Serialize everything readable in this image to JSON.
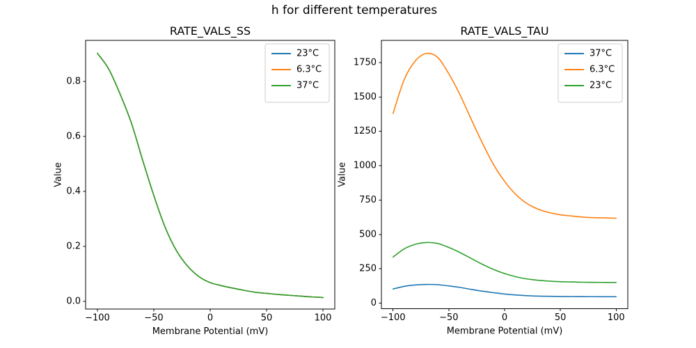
{
  "suptitle": "h for different temperatures",
  "palette": {
    "blue": "#1f77b4",
    "orange": "#ff7f0e",
    "green": "#2ca02c",
    "spine": "#000000",
    "legend_border": "#cccccc",
    "background": "#ffffff"
  },
  "chart_data": [
    {
      "type": "line",
      "title": "RATE_VALS_SS",
      "xlabel": "Membrane Potential (mV)",
      "ylabel": "Value",
      "grid": false,
      "legend_position": "upper right",
      "xlim": [
        -110.45,
        110.45
      ],
      "ylim": [
        -0.028,
        0.949
      ],
      "x_tick_values": [
        -100,
        -50,
        0,
        50,
        100
      ],
      "x_tick_labels": [
        "−100",
        "−50",
        "0",
        "50",
        "100"
      ],
      "y_tick_values": [
        0.0,
        0.2,
        0.4,
        0.6,
        0.8
      ],
      "y_tick_labels": [
        "0.0",
        "0.2",
        "0.4",
        "0.6",
        "0.8"
      ],
      "x": [
        -100,
        -90,
        -80,
        -70,
        -60,
        -50,
        -40,
        -30,
        -20,
        -10,
        0,
        10,
        20,
        30,
        40,
        50,
        60,
        70,
        80,
        90,
        100
      ],
      "series": [
        {
          "name": "23°C",
          "color": "#1f77b4",
          "values": [
            0.902,
            0.845,
            0.755,
            0.65,
            0.515,
            0.385,
            0.27,
            0.185,
            0.128,
            0.09,
            0.068,
            0.057,
            0.048,
            0.04,
            0.033,
            0.029,
            0.025,
            0.022,
            0.019,
            0.016,
            0.014
          ]
        },
        {
          "name": "6.3°C",
          "color": "#ff7f0e",
          "values": [
            0.902,
            0.845,
            0.755,
            0.65,
            0.515,
            0.385,
            0.27,
            0.185,
            0.128,
            0.09,
            0.068,
            0.057,
            0.048,
            0.04,
            0.033,
            0.029,
            0.025,
            0.022,
            0.019,
            0.016,
            0.014
          ]
        },
        {
          "name": "37°C",
          "color": "#2ca02c",
          "values": [
            0.902,
            0.845,
            0.755,
            0.65,
            0.515,
            0.385,
            0.27,
            0.185,
            0.128,
            0.09,
            0.068,
            0.057,
            0.048,
            0.04,
            0.033,
            0.029,
            0.025,
            0.022,
            0.019,
            0.016,
            0.014
          ]
        }
      ]
    },
    {
      "type": "line",
      "title": "RATE_VALS_TAU",
      "xlabel": "Membrane Potential (mV)",
      "ylabel": "Value",
      "grid": false,
      "legend_position": "upper right",
      "xlim": [
        -110.45,
        110.45
      ],
      "ylim": [
        -40.5,
        1912
      ],
      "x_tick_values": [
        -100,
        -50,
        0,
        50,
        100
      ],
      "x_tick_labels": [
        "−100",
        "−50",
        "0",
        "50",
        "100"
      ],
      "y_tick_values": [
        0,
        250,
        500,
        750,
        1000,
        1250,
        1500,
        1750
      ],
      "y_tick_labels": [
        "0",
        "250",
        "500",
        "750",
        "1000",
        "1250",
        "1500",
        "1750"
      ],
      "x": [
        -100,
        -90,
        -80,
        -70,
        -60,
        -50,
        -40,
        -30,
        -20,
        -10,
        0,
        10,
        20,
        30,
        40,
        50,
        60,
        70,
        80,
        90,
        100
      ],
      "series": [
        {
          "name": "37°C",
          "color": "#1f77b4",
          "values": [
            103,
            122,
            132,
            136,
            134,
            125,
            114,
            100,
            87,
            76,
            66,
            59,
            54,
            51,
            49.5,
            48,
            47.5,
            47,
            46.8,
            46.5,
            46.3
          ]
        },
        {
          "name": "6.3°C",
          "color": "#ff7f0e",
          "values": [
            1380,
            1627,
            1763,
            1817,
            1788,
            1669,
            1516,
            1339,
            1166,
            1009,
            886,
            791,
            725,
            684,
            659,
            643,
            634,
            626,
            622,
            620,
            618
          ]
        },
        {
          "name": "23°C",
          "color": "#2ca02c",
          "values": [
            335,
            395,
            428,
            441,
            434,
            405,
            368,
            325,
            283,
            245,
            215,
            192,
            176,
            166,
            160,
            156,
            154,
            152,
            151,
            150.5,
            150
          ]
        }
      ]
    }
  ]
}
